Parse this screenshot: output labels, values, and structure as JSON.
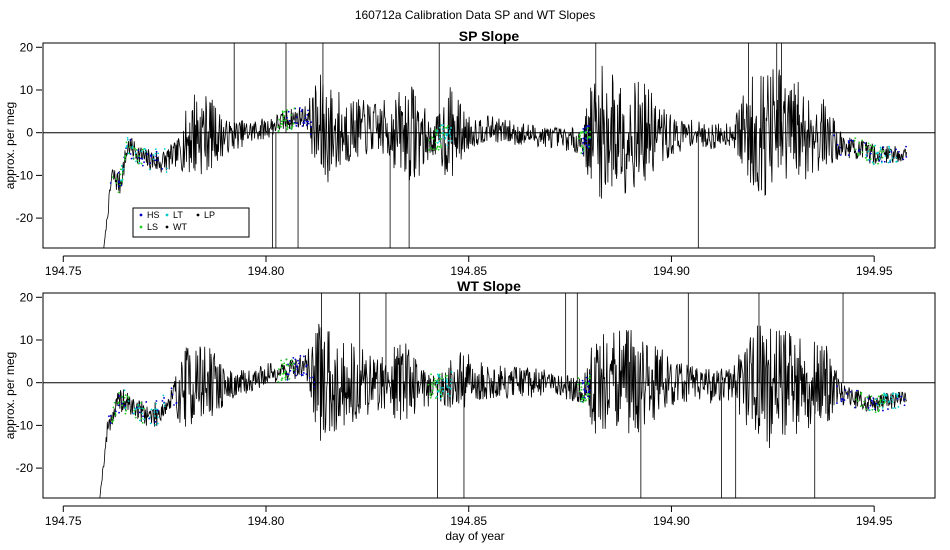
{
  "figure_title": "160712a   Calibration Data SP and WT Slopes",
  "x_axis_label": "day of year",
  "colors": {
    "HS": "#0000cc",
    "LS": "#22cc22",
    "LT": "#00cccc",
    "WT": "#000000",
    "LP": "#000000",
    "trace": "#000000"
  },
  "legend": {
    "entries": [
      {
        "name": "HS",
        "color": "#0000cc"
      },
      {
        "name": "LT",
        "color": "#00cccc"
      },
      {
        "name": "LP",
        "color": "#000000"
      },
      {
        "name": "LS",
        "color": "#22cc22"
      },
      {
        "name": "WT",
        "color": "#000000"
      }
    ],
    "placement": "bottom-left of top panel"
  },
  "chart_data": [
    {
      "type": "line",
      "title": "SP Slope",
      "xlabel": "",
      "ylabel": "approx. per meg",
      "xlim": [
        194.745,
        194.965
      ],
      "ylim": [
        -27,
        21
      ],
      "xticks": [
        194.75,
        194.8,
        194.85,
        194.9,
        194.95
      ],
      "xtick_labels": [
        "194.75",
        "194.80",
        "194.85",
        "194.90",
        "194.95"
      ],
      "yticks": [
        -20,
        -10,
        0,
        10,
        20
      ],
      "ytick_labels": [
        "-20",
        "-10",
        "0",
        "10",
        "20"
      ],
      "hline": 0,
      "legend": "bottom-left",
      "envelope_points": [
        [
          194.76,
          -27,
          0
        ],
        [
          194.762,
          -10,
          2.5
        ],
        [
          194.764,
          -12,
          3
        ],
        [
          194.766,
          -3,
          2.5
        ],
        [
          194.77,
          -6,
          2.5
        ],
        [
          194.774,
          -7,
          3
        ],
        [
          194.778,
          -5,
          3
        ],
        [
          194.782,
          0,
          11
        ],
        [
          194.786,
          0,
          9
        ],
        [
          194.79,
          -1,
          4
        ],
        [
          194.795,
          0,
          3
        ],
        [
          194.8,
          1,
          2.5
        ],
        [
          194.805,
          3,
          2.5
        ],
        [
          194.81,
          4,
          2.5
        ],
        [
          194.813,
          0,
          14
        ],
        [
          194.817,
          0,
          11
        ],
        [
          194.822,
          1,
          7
        ],
        [
          194.828,
          1,
          6
        ],
        [
          194.833,
          0,
          10
        ],
        [
          194.837,
          0,
          12
        ],
        [
          194.841,
          -2,
          3
        ],
        [
          194.845,
          0,
          12
        ],
        [
          194.85,
          0,
          4
        ],
        [
          194.855,
          1,
          3
        ],
        [
          194.86,
          0,
          3
        ],
        [
          194.87,
          -1,
          2.5
        ],
        [
          194.878,
          -2,
          3
        ],
        [
          194.881,
          0,
          16
        ],
        [
          194.887,
          0,
          15
        ],
        [
          194.893,
          0,
          12
        ],
        [
          194.9,
          -1,
          5
        ],
        [
          194.905,
          0,
          3
        ],
        [
          194.91,
          -1,
          3
        ],
        [
          194.915,
          0,
          3
        ],
        [
          194.92,
          0,
          14
        ],
        [
          194.926,
          0,
          16
        ],
        [
          194.932,
          0,
          12
        ],
        [
          194.937,
          0,
          9
        ],
        [
          194.942,
          -3,
          3
        ],
        [
          194.946,
          -4,
          2.5
        ],
        [
          194.95,
          -5,
          2.5
        ],
        [
          194.955,
          -5,
          2
        ],
        [
          194.958,
          -5,
          2
        ]
      ]
    },
    {
      "type": "line",
      "title": "WT Slope",
      "xlabel": "day of year",
      "ylabel": "approx. per meg",
      "xlim": [
        194.745,
        194.965
      ],
      "ylim": [
        -27,
        21
      ],
      "xticks": [
        194.75,
        194.8,
        194.85,
        194.9,
        194.95
      ],
      "xtick_labels": [
        "194.75",
        "194.80",
        "194.85",
        "194.90",
        "194.95"
      ],
      "yticks": [
        -20,
        -10,
        0,
        10,
        20
      ],
      "ytick_labels": [
        "-20",
        "-10",
        "0",
        "10",
        "20"
      ],
      "hline": 0,
      "envelope_points": [
        [
          194.759,
          -27,
          0
        ],
        [
          194.761,
          -10,
          2.5
        ],
        [
          194.764,
          -4,
          3
        ],
        [
          194.768,
          -6,
          2.5
        ],
        [
          194.772,
          -8,
          3
        ],
        [
          194.776,
          -5,
          3
        ],
        [
          194.781,
          0,
          11
        ],
        [
          194.786,
          0,
          9
        ],
        [
          194.79,
          -1,
          4
        ],
        [
          194.795,
          0,
          3
        ],
        [
          194.8,
          2,
          2.5
        ],
        [
          194.805,
          3,
          2.5
        ],
        [
          194.81,
          4,
          3
        ],
        [
          194.813,
          0,
          14
        ],
        [
          194.818,
          0,
          11
        ],
        [
          194.823,
          0,
          9
        ],
        [
          194.828,
          0,
          7
        ],
        [
          194.833,
          1,
          10
        ],
        [
          194.837,
          0,
          8
        ],
        [
          194.842,
          -1,
          3
        ],
        [
          194.848,
          0,
          8
        ],
        [
          194.855,
          0,
          4
        ],
        [
          194.862,
          0,
          4
        ],
        [
          194.87,
          0,
          3
        ],
        [
          194.878,
          -2,
          3
        ],
        [
          194.881,
          0,
          12
        ],
        [
          194.887,
          0,
          13
        ],
        [
          194.893,
          0,
          12
        ],
        [
          194.9,
          0,
          6
        ],
        [
          194.905,
          0,
          4
        ],
        [
          194.91,
          -1,
          4
        ],
        [
          194.915,
          0,
          4
        ],
        [
          194.92,
          0,
          14
        ],
        [
          194.926,
          0,
          16
        ],
        [
          194.932,
          0,
          12
        ],
        [
          194.938,
          0,
          10
        ],
        [
          194.942,
          -3,
          3
        ],
        [
          194.946,
          -4,
          2.5
        ],
        [
          194.95,
          -5,
          2
        ],
        [
          194.955,
          -4,
          2
        ],
        [
          194.958,
          -4,
          2
        ]
      ]
    }
  ]
}
